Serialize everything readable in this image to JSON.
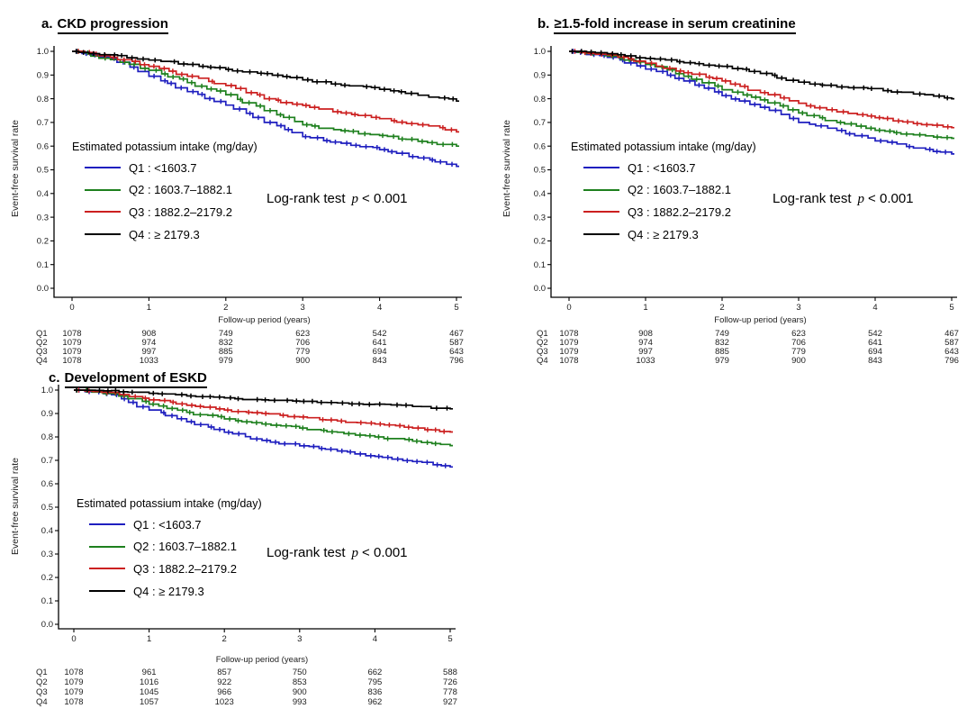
{
  "axes": {
    "ylabel": "Event-free survival rate",
    "xlabel": "Follow-up period (years)",
    "yticks": [
      "1.0",
      "0.9",
      "0.8",
      "0.7",
      "0.6",
      "0.5",
      "0.4",
      "0.3",
      "0.2",
      "0.1",
      "0.0"
    ],
    "xticks": [
      "0",
      "1",
      "2",
      "3",
      "4",
      "5"
    ]
  },
  "legend": {
    "title": "Estimated potassium intake (mg/day)",
    "separator": " : "
  },
  "logrank": {
    "prefix": "Log-rank test",
    "stat": "p",
    "value": "< 0.001"
  },
  "chart_data": [
    {
      "panel": "a",
      "title_letter": "a.",
      "title": "CKD progression",
      "type": "line",
      "subtype": "kaplan-meier-step",
      "x_years": [
        0,
        0.5,
        1,
        1.5,
        2,
        2.5,
        3,
        3.5,
        4,
        4.5,
        5
      ],
      "xlim": [
        0,
        5
      ],
      "ylim": [
        0.0,
        1.0
      ],
      "series": [
        {
          "name": "Q1",
          "range": "<1603.7",
          "color": "#1f1fbf",
          "values": [
            1.0,
            0.97,
            0.895,
            0.83,
            0.773,
            0.7,
            0.64,
            0.612,
            0.585,
            0.55,
            0.515
          ]
        },
        {
          "name": "Q2",
          "range": "1603.7–1882.1",
          "color": "#1e801e",
          "values": [
            1.0,
            0.965,
            0.92,
            0.868,
            0.817,
            0.75,
            0.69,
            0.665,
            0.645,
            0.62,
            0.6
          ]
        },
        {
          "name": "Q3",
          "range": "1882.2–2179.2",
          "color": "#cc2020",
          "values": [
            1.0,
            0.975,
            0.937,
            0.895,
            0.856,
            0.8,
            0.772,
            0.74,
            0.716,
            0.69,
            0.66
          ]
        },
        {
          "name": "Q4",
          "range": "≥ 2179.3",
          "color": "#000000",
          "values": [
            1.0,
            0.985,
            0.963,
            0.945,
            0.924,
            0.906,
            0.88,
            0.857,
            0.84,
            0.815,
            0.79
          ]
        }
      ],
      "risk_table": [
        {
          "label": "Q1",
          "counts": [
            "1078",
            "908",
            "749",
            "623",
            "542",
            "467"
          ]
        },
        {
          "label": "Q2",
          "counts": [
            "1079",
            "974",
            "832",
            "706",
            "641",
            "587"
          ]
        },
        {
          "label": "Q3",
          "counts": [
            "1079",
            "997",
            "885",
            "779",
            "694",
            "643"
          ]
        },
        {
          "label": "Q4",
          "counts": [
            "1078",
            "1033",
            "979",
            "900",
            "843",
            "796"
          ]
        }
      ]
    },
    {
      "panel": "b",
      "title_letter": "b.",
      "title": "≥1.5-fold increase in serum creatinine",
      "type": "line",
      "subtype": "kaplan-meier-step",
      "x_years": [
        0,
        0.5,
        1,
        1.5,
        2,
        2.5,
        3,
        3.5,
        4,
        4.5,
        5
      ],
      "xlim": [
        0,
        5
      ],
      "ylim": [
        0.0,
        1.0
      ],
      "series": [
        {
          "name": "Q1",
          "range": "<1603.7",
          "color": "#1f1fbf",
          "values": [
            1.0,
            0.975,
            0.925,
            0.875,
            0.813,
            0.764,
            0.7,
            0.666,
            0.622,
            0.592,
            0.567
          ]
        },
        {
          "name": "Q2",
          "range": "1603.7–1882.1",
          "color": "#1e801e",
          "values": [
            1.0,
            0.98,
            0.945,
            0.895,
            0.838,
            0.795,
            0.74,
            0.7,
            0.667,
            0.648,
            0.633
          ]
        },
        {
          "name": "Q3",
          "range": "1882.2–2179.2",
          "color": "#cc2020",
          "values": [
            1.0,
            0.985,
            0.95,
            0.91,
            0.875,
            0.826,
            0.781,
            0.745,
            0.72,
            0.695,
            0.678
          ]
        },
        {
          "name": "Q4",
          "range": "≥ 2179.3",
          "color": "#000000",
          "values": [
            1.0,
            0.99,
            0.97,
            0.952,
            0.937,
            0.907,
            0.87,
            0.85,
            0.843,
            0.82,
            0.8
          ]
        }
      ],
      "risk_table": [
        {
          "label": "Q1",
          "counts": [
            "1078",
            "908",
            "749",
            "623",
            "542",
            "467"
          ]
        },
        {
          "label": "Q2",
          "counts": [
            "1079",
            "974",
            "832",
            "706",
            "641",
            "587"
          ]
        },
        {
          "label": "Q3",
          "counts": [
            "1079",
            "997",
            "885",
            "779",
            "694",
            "643"
          ]
        },
        {
          "label": "Q4",
          "counts": [
            "1078",
            "1033",
            "979",
            "900",
            "843",
            "796"
          ]
        }
      ]
    },
    {
      "panel": "c",
      "title_letter": "c.",
      "title": "Development of ESKD",
      "type": "line",
      "subtype": "kaplan-meier-step",
      "x_years": [
        0,
        0.5,
        1,
        1.5,
        2,
        2.5,
        3,
        3.5,
        4,
        4.5,
        5
      ],
      "xlim": [
        0,
        5
      ],
      "ylim": [
        0.0,
        1.0
      ],
      "series": [
        {
          "name": "Q1",
          "range": "<1603.7",
          "color": "#1f1fbf",
          "values": [
            1.0,
            0.98,
            0.915,
            0.865,
            0.82,
            0.785,
            0.762,
            0.74,
            0.717,
            0.695,
            0.672
          ]
        },
        {
          "name": "Q2",
          "range": "1603.7–1882.1",
          "color": "#1e801e",
          "values": [
            1.0,
            0.985,
            0.94,
            0.905,
            0.877,
            0.855,
            0.838,
            0.82,
            0.8,
            0.782,
            0.763
          ]
        },
        {
          "name": "Q3",
          "range": "1882.2–2179.2",
          "color": "#cc2020",
          "values": [
            1.0,
            0.99,
            0.958,
            0.935,
            0.915,
            0.9,
            0.885,
            0.868,
            0.855,
            0.838,
            0.821
          ]
        },
        {
          "name": "Q4",
          "range": "≥ 2179.3",
          "color": "#000000",
          "values": [
            1.0,
            0.998,
            0.986,
            0.975,
            0.967,
            0.958,
            0.952,
            0.945,
            0.94,
            0.93,
            0.92
          ]
        }
      ],
      "risk_table": [
        {
          "label": "Q1",
          "counts": [
            "1078",
            "961",
            "857",
            "750",
            "662",
            "588"
          ]
        },
        {
          "label": "Q2",
          "counts": [
            "1079",
            "1016",
            "922",
            "853",
            "795",
            "726"
          ]
        },
        {
          "label": "Q3",
          "counts": [
            "1079",
            "1045",
            "966",
            "900",
            "836",
            "778"
          ]
        },
        {
          "label": "Q4",
          "counts": [
            "1078",
            "1057",
            "1023",
            "993",
            "962",
            "927"
          ]
        }
      ]
    }
  ]
}
